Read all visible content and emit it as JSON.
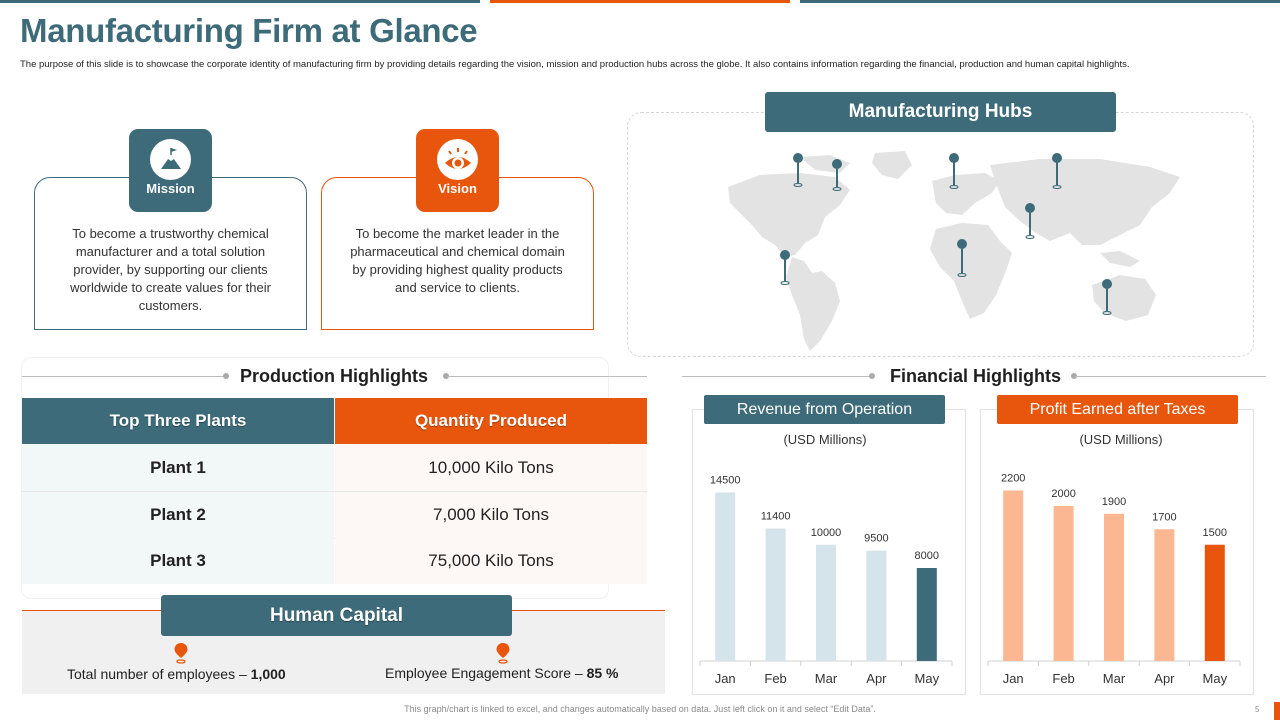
{
  "title": "Manufacturing Firm at Glance",
  "subtitle": "The purpose of this slide is to showcase the corporate identity of manufacturing firm by providing details regarding the vision, mission and production hubs across the globe. It also contains information regarding the financial, production and human capital highlights.",
  "mission": {
    "label": "Mission",
    "icon": "flag-mountain-icon",
    "text": "To become a trustworthy chemical manufacturer and a total solution provider, by supporting our clients worldwide to create values for their customers."
  },
  "vision": {
    "label": "Vision",
    "icon": "eye-icon",
    "text": "To become the market leader in the pharmaceutical and chemical domain by providing highest quality products and service to clients."
  },
  "hubs": {
    "title": "Manufacturing  Hubs",
    "icon": "world-map-pins-icon"
  },
  "production": {
    "title": "Production  Highlights",
    "headers": [
      "Top Three Plants",
      "Quantity Produced"
    ],
    "rows": [
      {
        "plant": "Plant 1",
        "quantity": "10,000 Kilo Tons"
      },
      {
        "plant": "Plant 2",
        "quantity": "7,000 Kilo Tons"
      },
      {
        "plant": "Plant 3",
        "quantity": "75,000 Kilo Tons"
      }
    ]
  },
  "human_capital": {
    "title": "Human Capital",
    "employees_label": "Total number  of employees –",
    "employees_value": "1,000",
    "engagement_label": "Employee  Engagement Score –",
    "engagement_value": "85 %"
  },
  "financial": {
    "title": "Financial  Highlights"
  },
  "chart_data": [
    {
      "type": "bar",
      "title": "Revenue from Operation",
      "subtitle": "(USD Millions)",
      "categories": [
        "Jan",
        "Feb",
        "Mar",
        "Apr",
        "May"
      ],
      "values": [
        14500,
        11400,
        10000,
        9500,
        8000
      ],
      "ylim": [
        0,
        16000
      ],
      "colors": [
        "#d5e3ea",
        "#d5e3ea",
        "#d5e3ea",
        "#d5e3ea",
        "#3d6b7a"
      ],
      "title_color": "#3d6b7a"
    },
    {
      "type": "bar",
      "title": "Profit Earned after Taxes",
      "subtitle": "(USD Millions)",
      "categories": [
        "Jan",
        "Feb",
        "Mar",
        "Apr",
        "May"
      ],
      "values": [
        2200,
        2000,
        1900,
        1700,
        1500
      ],
      "ylim": [
        0,
        2400
      ],
      "colors": [
        "#fbb791",
        "#fbb791",
        "#fbb791",
        "#fbb791",
        "#e8560d"
      ],
      "title_color": "#e8560d"
    }
  ],
  "footer": "This graph/chart is linked to excel, and changes automatically based on data. Just left click on it and select “Edit Data”.",
  "page_number": "5",
  "colors": {
    "teal": "#3d6b7a",
    "orange": "#e8560d"
  }
}
